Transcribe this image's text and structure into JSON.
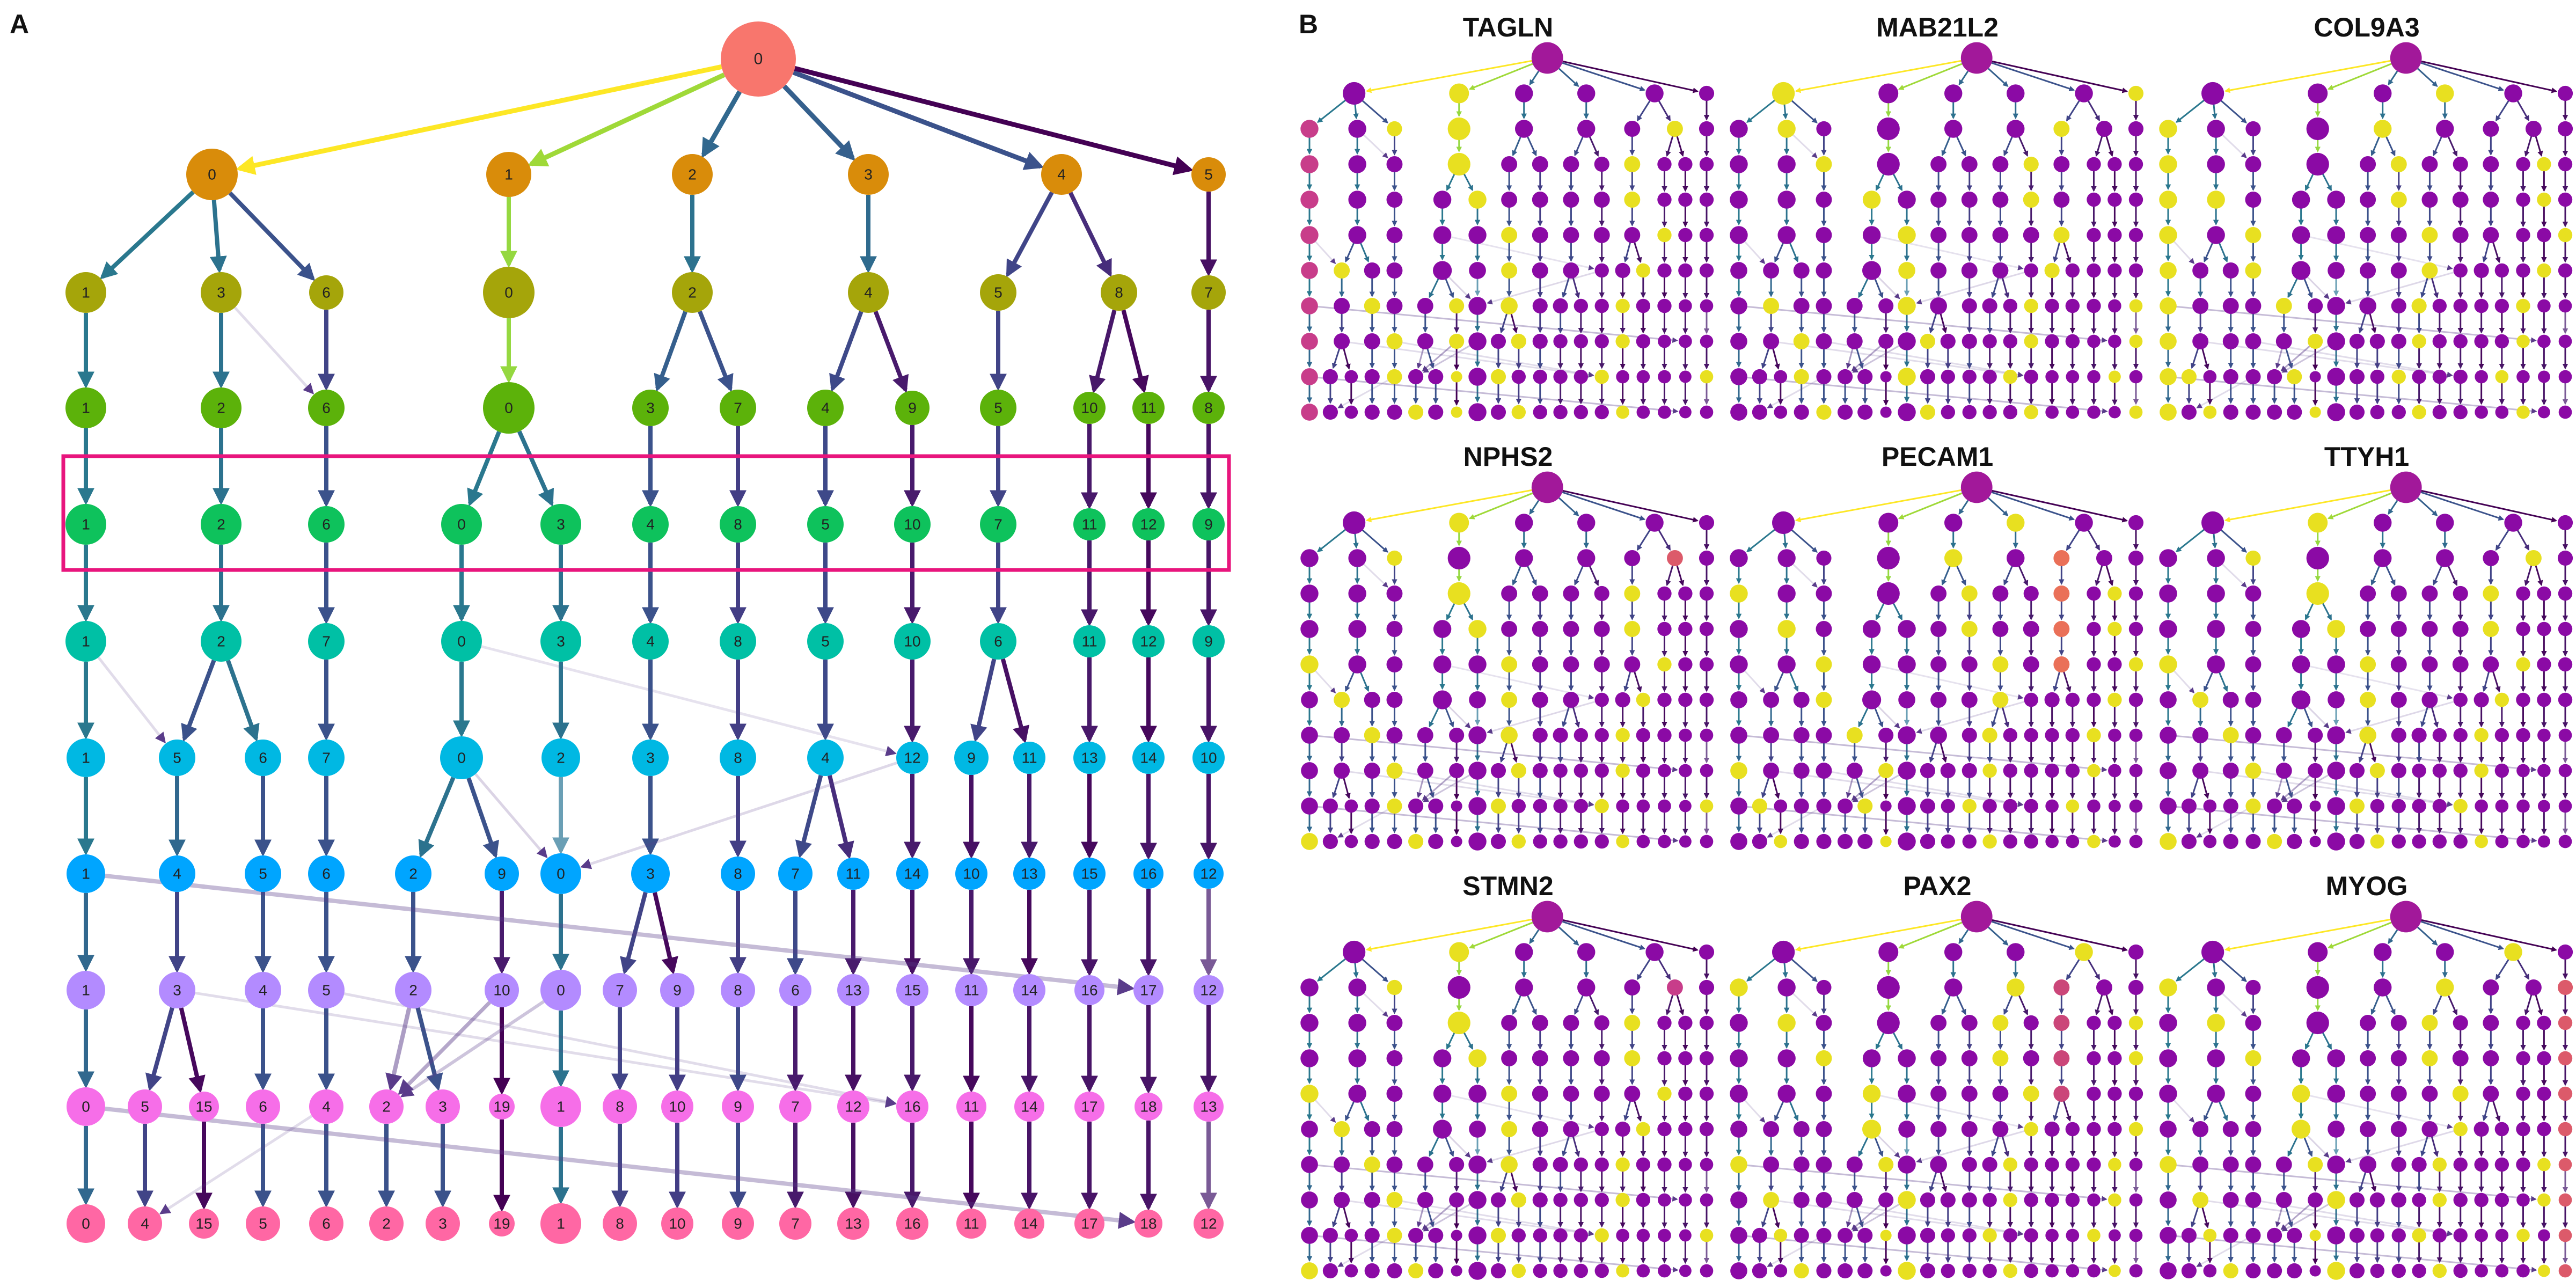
{
  "panels": {
    "a": {
      "letter": "A"
    },
    "b": {
      "letter": "B"
    }
  },
  "colors": {
    "levels": [
      "#f8766d",
      "#d98c0a",
      "#a5a50a",
      "#5cb20a",
      "#0ec25c",
      "#00c0a5",
      "#00b8e3",
      "#00a5ff",
      "#b38bff",
      "#f66ee8",
      "#ff67a4"
    ],
    "highlight_box": "#e8157d",
    "low": "#8b0aa5",
    "high": "#f4ec25"
  },
  "tree": {
    "levels": [
      [
        "0"
      ],
      [
        "0",
        "1",
        "2",
        "3",
        "4",
        "5"
      ],
      [
        "1",
        "3",
        "6",
        "0",
        "2",
        "4",
        "5",
        "8",
        "7"
      ],
      [
        "1",
        "2",
        "6",
        "0",
        "3",
        "7",
        "4",
        "9",
        "5",
        "10",
        "11",
        "8"
      ],
      [
        "1",
        "2",
        "6",
        "0",
        "3",
        "4",
        "8",
        "5",
        "10",
        "7",
        "11",
        "12",
        "9"
      ],
      [
        "1",
        "2",
        "7",
        "0",
        "3",
        "4",
        "8",
        "5",
        "10",
        "6",
        "11",
        "12",
        "9"
      ],
      [
        "1",
        "5",
        "6",
        "7",
        "0",
        "2",
        "3",
        "8",
        "4",
        "12",
        "9",
        "11",
        "13",
        "14",
        "10"
      ],
      [
        "1",
        "4",
        "5",
        "6",
        "2",
        "9",
        "0",
        "3",
        "8",
        "7",
        "11",
        "14",
        "10",
        "13",
        "15",
        "16",
        "12"
      ],
      [
        "1",
        "3",
        "4",
        "5",
        "2",
        "10",
        "0",
        "7",
        "9",
        "8",
        "6",
        "13",
        "15",
        "11",
        "14",
        "16",
        "17",
        "12"
      ],
      [
        "0",
        "5",
        "15",
        "6",
        "4",
        "2",
        "3",
        "19",
        "1",
        "8",
        "10",
        "9",
        "7",
        "12",
        "16",
        "11",
        "14",
        "17",
        "18",
        "13"
      ],
      [
        "0",
        "4",
        "15",
        "5",
        "6",
        "2",
        "3",
        "19",
        "1",
        "8",
        "10",
        "9",
        "7",
        "13",
        "16",
        "11",
        "14",
        "17",
        "18",
        "12"
      ]
    ]
  },
  "genes": [
    "TAGLN",
    "MAB21L2",
    "COL9A3",
    "NPHS2",
    "PECAM1",
    "TTYH1",
    "STMN2",
    "PAX2",
    "MYOG"
  ]
}
